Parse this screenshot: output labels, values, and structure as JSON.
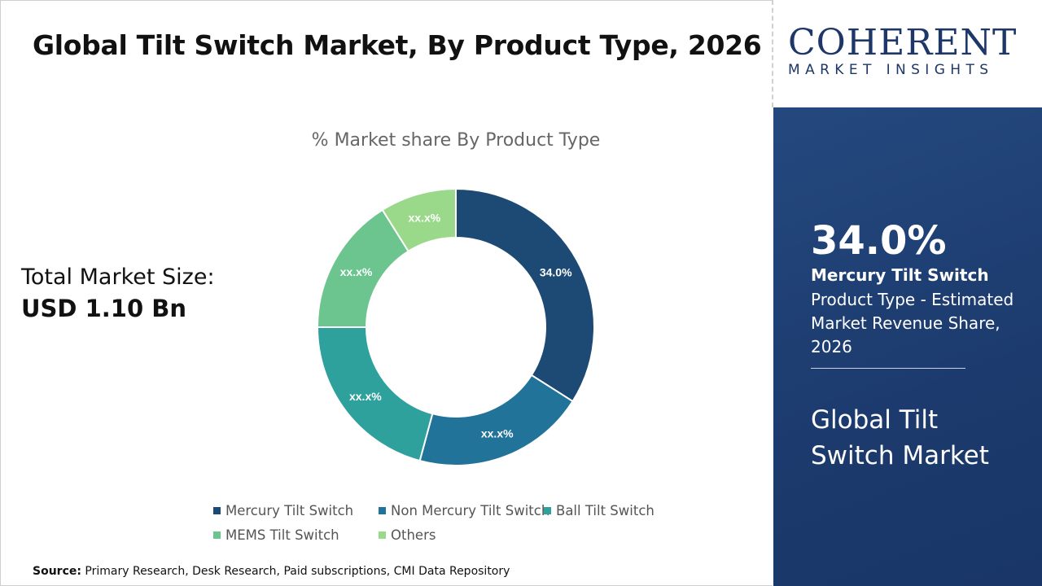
{
  "header": {
    "title": "Global Tilt Switch Market, By Product Type, 2026"
  },
  "total_market": {
    "label": "Total Market Size:",
    "value": "USD 1.10 Bn"
  },
  "logo": {
    "line1": "COHERENT",
    "line2": "MARKET INSIGHTS"
  },
  "highlight": {
    "percent": "34.0%",
    "segment": "Mercury Tilt Switch",
    "description": "Product Type - Estimated Market Revenue Share, 2026",
    "market_name": "Global Tilt Switch Market"
  },
  "source": {
    "label": "Source:",
    "text": "Primary Research, Desk Research, Paid subscriptions, CMI Data Repository"
  },
  "chart_data": {
    "type": "pie",
    "subtype": "donut",
    "title": "% Market share By Product Type",
    "legend_position": "bottom",
    "categories": [
      "Mercury Tilt Switch",
      "Non Mercury Tilt Switch",
      "Ball Tilt Switch",
      "MEMS Tilt Switch",
      "Others"
    ],
    "values": [
      34.0,
      20.2,
      20.8,
      16.1,
      8.9
    ],
    "data_labels": [
      "34.0%",
      "xx.x%",
      "xx.x%",
      "xx.x%",
      "xx.x%"
    ],
    "colors": [
      "#1d4a74",
      "#21739a",
      "#2fa19d",
      "#6cc48f",
      "#9ad98a"
    ]
  }
}
